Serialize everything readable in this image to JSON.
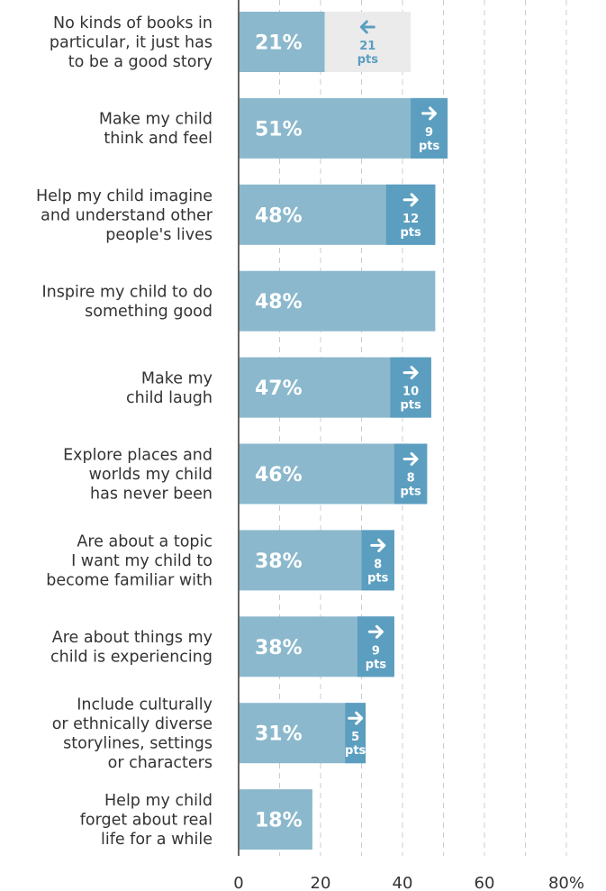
{
  "chart_data": {
    "type": "bar",
    "orientation": "horizontal",
    "categories": [
      "No kinds of books in particular, it just has to be a good story",
      "Make my child think and feel",
      "Help my child imagine and understand other people's lives",
      "Inspire my child to do something good",
      "Make my child laugh",
      "Explore places and worlds my child has never been",
      "Are about a topic I want my child to become familiar with",
      "Are about things my child is experiencing",
      "Include culturally or ethnically diverse storylines, settings or characters",
      "Help my child forget about real life for a while"
    ],
    "label_lines": [
      [
        "No kinds of books in",
        "particular, it just has",
        "to be a good story"
      ],
      [
        "Make my child",
        "think and feel"
      ],
      [
        "Help my child imagine",
        "and understand other",
        "people's lives"
      ],
      [
        "Inspire my child to do",
        "something good"
      ],
      [
        "Make my",
        "child laugh"
      ],
      [
        "Explore places and",
        "worlds my child",
        "has never been"
      ],
      [
        "Are about a topic",
        "I want my child to",
        "become familiar with"
      ],
      [
        "Are about things my",
        "child is experiencing"
      ],
      [
        "Include culturally",
        "or ethnically diverse",
        "storylines, settings",
        "or characters"
      ],
      [
        "Help my child",
        "forget about real",
        "life for a while"
      ]
    ],
    "values": [
      21,
      51,
      48,
      48,
      47,
      46,
      38,
      38,
      31,
      18
    ],
    "value_labels": [
      "21%",
      "51%",
      "48%",
      "48%",
      "47%",
      "46%",
      "38%",
      "38%",
      "31%",
      "18%"
    ],
    "changes": [
      {
        "direction": "down",
        "points": 21,
        "number_text": "21",
        "unit_text": "pts"
      },
      {
        "direction": "up",
        "points": 9,
        "number_text": "9",
        "unit_text": "pts"
      },
      {
        "direction": "up",
        "points": 12,
        "number_text": "12",
        "unit_text": "pts"
      },
      null,
      {
        "direction": "up",
        "points": 10,
        "number_text": "10",
        "unit_text": "pts"
      },
      {
        "direction": "up",
        "points": 8,
        "number_text": "8",
        "unit_text": "pts"
      },
      {
        "direction": "up",
        "points": 8,
        "number_text": "8",
        "unit_text": "pts"
      },
      {
        "direction": "up",
        "points": 9,
        "number_text": "9",
        "unit_text": "pts"
      },
      {
        "direction": "up",
        "points": 5,
        "number_text": "5",
        "unit_text": "pts"
      },
      null
    ],
    "x_ticks": [
      0,
      20,
      40,
      60,
      80
    ],
    "x_tick_labels": [
      "0",
      "20",
      "40",
      "60",
      "80%"
    ],
    "xlim": [
      0,
      80
    ],
    "gridlines": true,
    "colors": {
      "bar": "#8bb8cc",
      "increase_segment": "#5b9ec0",
      "decrease_segment": "#ebebeb",
      "decrease_text": "#5b9ec0",
      "increase_text": "#ffffff",
      "axis": "#666666",
      "grid": "#cccccc"
    }
  }
}
